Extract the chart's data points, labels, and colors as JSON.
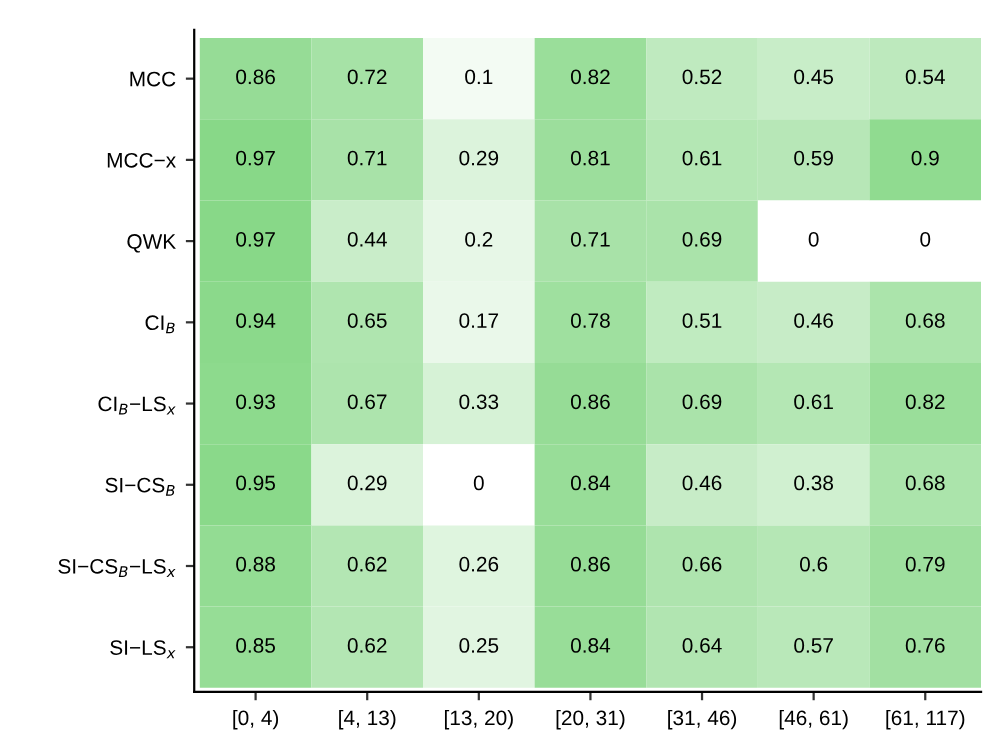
{
  "chart_data": {
    "type": "heatmap",
    "categories": [
      "[0, 4)",
      "[4, 13)",
      "[13, 20)",
      "[20, 31)",
      "[31, 46)",
      "[46, 61)",
      "[61, 117)"
    ],
    "y_categories": [
      "MCC",
      "MCC−x",
      "QWK",
      "CI$_{B}$",
      "CI$_{B}$−LS$_{x}$",
      "SI−CS$_{B}$",
      "SI−CS$_{B}$−LS$_{x}$",
      "SI−LS$_{x}$"
    ],
    "cells": [
      [
        0.86,
        0.72,
        0.1,
        0.82,
        0.52,
        0.45,
        0.54
      ],
      [
        0.97,
        0.71,
        0.29,
        0.81,
        0.61,
        0.59,
        0.9
      ],
      [
        0.97,
        0.44,
        0.2,
        0.71,
        0.69,
        0,
        0
      ],
      [
        0.94,
        0.65,
        0.17,
        0.78,
        0.51,
        0.46,
        0.68
      ],
      [
        0.93,
        0.67,
        0.33,
        0.86,
        0.69,
        0.61,
        0.82
      ],
      [
        0.95,
        0.29,
        0,
        0.84,
        0.46,
        0.38,
        0.68
      ],
      [
        0.88,
        0.62,
        0.26,
        0.86,
        0.66,
        0.6,
        0.79
      ],
      [
        0.85,
        0.62,
        0.25,
        0.84,
        0.64,
        0.57,
        0.76
      ]
    ],
    "colors": [
      "#ffffff",
      "#88d888"
    ],
    "data_labels": true
  }
}
